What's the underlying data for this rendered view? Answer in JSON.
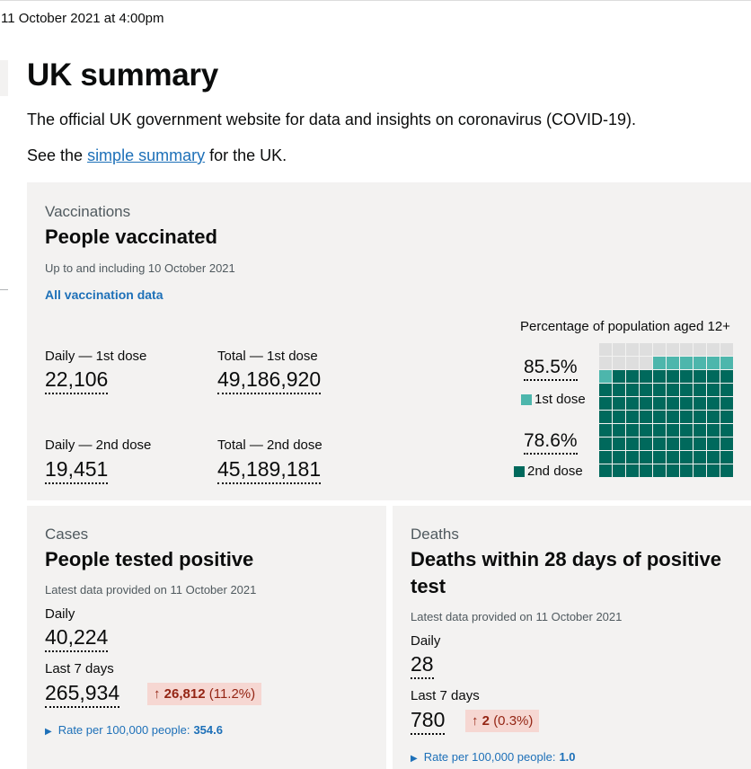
{
  "timestamp": "11 October 2021 at 4:00pm",
  "page": {
    "title": "UK summary",
    "lead": "The official UK government website for data and insights on coronavirus (COVID-19).",
    "see_prefix": "See the ",
    "see_link": "simple summary",
    "see_suffix": " for the UK."
  },
  "vaccinations": {
    "kicker": "Vaccinations",
    "heading": "People vaccinated",
    "meta": "Up to and including 10 October 2021",
    "link": "All vaccination data",
    "daily_first_label": "Daily — 1st dose",
    "daily_first_value": "22,106",
    "total_first_label": "Total — 1st dose",
    "total_first_value": "49,186,920",
    "daily_second_label": "Daily — 2nd dose",
    "daily_second_value": "19,451",
    "total_second_label": "Total — 2nd dose",
    "total_second_value": "45,189,181",
    "waffle": {
      "title": "Percentage of population aged 12+",
      "first_pct_label": "85.5%",
      "first_legend": "1st dose",
      "second_pct_label": "78.6%",
      "second_legend": "2nd dose",
      "first_dose_pct": 85.5,
      "second_dose_pct": 78.6,
      "colors": {
        "first": "#4db6ac",
        "second": "#00695c",
        "empty": "#dedede"
      }
    }
  },
  "cases": {
    "kicker": "Cases",
    "heading": "People tested positive",
    "meta": "Latest data provided on 11 October 2021",
    "daily_label": "Daily",
    "daily_value": "40,224",
    "last7_label": "Last 7 days",
    "last7_value": "265,934",
    "change_arrow": "↑",
    "change_number": "26,812",
    "change_percent": "(11.2%)",
    "rate_label": "Rate per 100,000 people:",
    "rate_value": "354.6"
  },
  "deaths": {
    "kicker": "Deaths",
    "heading": "Deaths within 28 days of positive test",
    "meta": "Latest data provided on 11 October 2021",
    "daily_label": "Daily",
    "daily_value": "28",
    "last7_label": "Last 7 days",
    "last7_value": "780",
    "change_arrow": "↑",
    "change_number": "2",
    "change_percent": "(0.3%)",
    "rate_label": "Rate per 100,000 people:",
    "rate_value": "1.0"
  },
  "icons": {
    "expand": "triangle-right-icon",
    "increase": "arrow-up-icon"
  }
}
